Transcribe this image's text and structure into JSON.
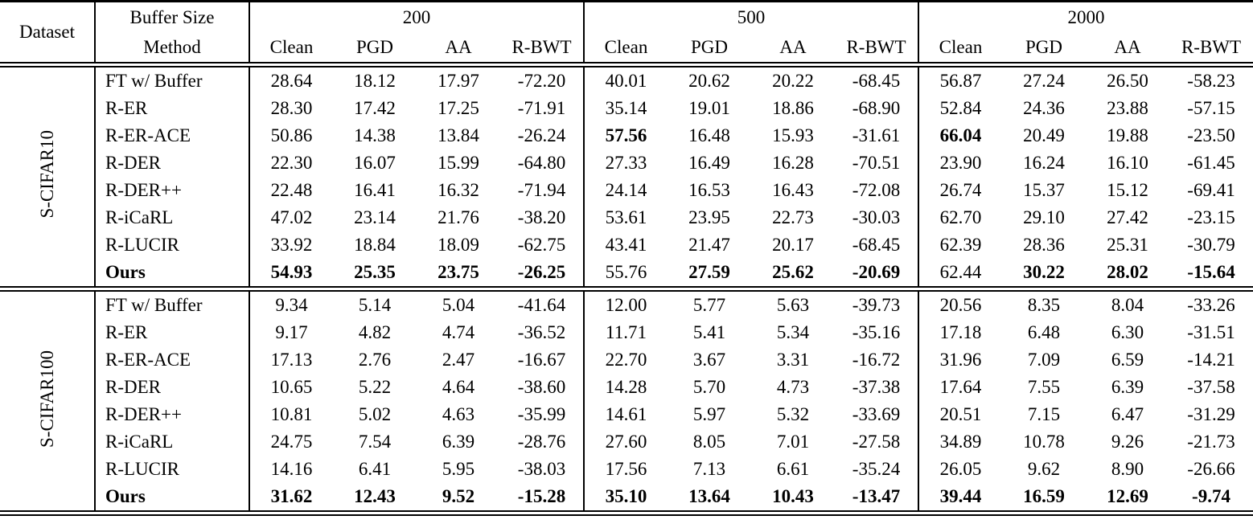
{
  "colors": {
    "background": "#ffffff",
    "text": "#000000",
    "rule": "#000000"
  },
  "table": {
    "corner_label": "Dataset",
    "buffer_size_label": "Buffer Size",
    "method_label": "Method",
    "buffer_sizes": [
      "200",
      "500",
      "2000"
    ],
    "metric_columns": [
      "Clean",
      "PGD",
      "AA",
      "R-BWT"
    ],
    "sections": [
      {
        "dataset": "S-CIFAR10",
        "rows": [
          {
            "method": "FT w/ Buffer",
            "bold_method": false,
            "values": [
              "28.64",
              "18.12",
              "17.97",
              "-72.20",
              "40.01",
              "20.62",
              "20.22",
              "-68.45",
              "56.87",
              "27.24",
              "26.50",
              "-58.23"
            ],
            "bold": [
              false,
              false,
              false,
              false,
              false,
              false,
              false,
              false,
              false,
              false,
              false,
              false
            ]
          },
          {
            "method": "R-ER",
            "bold_method": false,
            "values": [
              "28.30",
              "17.42",
              "17.25",
              "-71.91",
              "35.14",
              "19.01",
              "18.86",
              "-68.90",
              "52.84",
              "24.36",
              "23.88",
              "-57.15"
            ],
            "bold": [
              false,
              false,
              false,
              false,
              false,
              false,
              false,
              false,
              false,
              false,
              false,
              false
            ]
          },
          {
            "method": "R-ER-ACE",
            "bold_method": false,
            "values": [
              "50.86",
              "14.38",
              "13.84",
              "-26.24",
              "57.56",
              "16.48",
              "15.93",
              "-31.61",
              "66.04",
              "20.49",
              "19.88",
              "-23.50"
            ],
            "bold": [
              false,
              false,
              false,
              false,
              true,
              false,
              false,
              false,
              true,
              false,
              false,
              false
            ]
          },
          {
            "method": "R-DER",
            "bold_method": false,
            "values": [
              "22.30",
              "16.07",
              "15.99",
              "-64.80",
              "27.33",
              "16.49",
              "16.28",
              "-70.51",
              "23.90",
              "16.24",
              "16.10",
              "-61.45"
            ],
            "bold": [
              false,
              false,
              false,
              false,
              false,
              false,
              false,
              false,
              false,
              false,
              false,
              false
            ]
          },
          {
            "method": "R-DER++",
            "bold_method": false,
            "values": [
              "22.48",
              "16.41",
              "16.32",
              "-71.94",
              "24.14",
              "16.53",
              "16.43",
              "-72.08",
              "26.74",
              "15.37",
              "15.12",
              "-69.41"
            ],
            "bold": [
              false,
              false,
              false,
              false,
              false,
              false,
              false,
              false,
              false,
              false,
              false,
              false
            ]
          },
          {
            "method": "R-iCaRL",
            "bold_method": false,
            "values": [
              "47.02",
              "23.14",
              "21.76",
              "-38.20",
              "53.61",
              "23.95",
              "22.73",
              "-30.03",
              "62.70",
              "29.10",
              "27.42",
              "-23.15"
            ],
            "bold": [
              false,
              false,
              false,
              false,
              false,
              false,
              false,
              false,
              false,
              false,
              false,
              false
            ]
          },
          {
            "method": "R-LUCIR",
            "bold_method": false,
            "values": [
              "33.92",
              "18.84",
              "18.09",
              "-62.75",
              "43.41",
              "21.47",
              "20.17",
              "-68.45",
              "62.39",
              "28.36",
              "25.31",
              "-30.79"
            ],
            "bold": [
              false,
              false,
              false,
              false,
              false,
              false,
              false,
              false,
              false,
              false,
              false,
              false
            ]
          },
          {
            "method": "Ours",
            "bold_method": true,
            "values": [
              "54.93",
              "25.35",
              "23.75",
              "-26.25",
              "55.76",
              "27.59",
              "25.62",
              "-20.69",
              "62.44",
              "30.22",
              "28.02",
              "-15.64"
            ],
            "bold": [
              true,
              true,
              true,
              true,
              false,
              true,
              true,
              true,
              false,
              true,
              true,
              true
            ]
          }
        ]
      },
      {
        "dataset": "S-CIFAR100",
        "rows": [
          {
            "method": "FT w/ Buffer",
            "bold_method": false,
            "values": [
              "9.34",
              "5.14",
              "5.04",
              "-41.64",
              "12.00",
              "5.77",
              "5.63",
              "-39.73",
              "20.56",
              "8.35",
              "8.04",
              "-33.26"
            ],
            "bold": [
              false,
              false,
              false,
              false,
              false,
              false,
              false,
              false,
              false,
              false,
              false,
              false
            ]
          },
          {
            "method": "R-ER",
            "bold_method": false,
            "values": [
              "9.17",
              "4.82",
              "4.74",
              "-36.52",
              "11.71",
              "5.41",
              "5.34",
              "-35.16",
              "17.18",
              "6.48",
              "6.30",
              "-31.51"
            ],
            "bold": [
              false,
              false,
              false,
              false,
              false,
              false,
              false,
              false,
              false,
              false,
              false,
              false
            ]
          },
          {
            "method": "R-ER-ACE",
            "bold_method": false,
            "values": [
              "17.13",
              "2.76",
              "2.47",
              "-16.67",
              "22.70",
              "3.67",
              "3.31",
              "-16.72",
              "31.96",
              "7.09",
              "6.59",
              "-14.21"
            ],
            "bold": [
              false,
              false,
              false,
              false,
              false,
              false,
              false,
              false,
              false,
              false,
              false,
              false
            ]
          },
          {
            "method": "R-DER",
            "bold_method": false,
            "values": [
              "10.65",
              "5.22",
              "4.64",
              "-38.60",
              "14.28",
              "5.70",
              "4.73",
              "-37.38",
              "17.64",
              "7.55",
              "6.39",
              "-37.58"
            ],
            "bold": [
              false,
              false,
              false,
              false,
              false,
              false,
              false,
              false,
              false,
              false,
              false,
              false
            ]
          },
          {
            "method": "R-DER++",
            "bold_method": false,
            "values": [
              "10.81",
              "5.02",
              "4.63",
              "-35.99",
              "14.61",
              "5.97",
              "5.32",
              "-33.69",
              "20.51",
              "7.15",
              "6.47",
              "-31.29"
            ],
            "bold": [
              false,
              false,
              false,
              false,
              false,
              false,
              false,
              false,
              false,
              false,
              false,
              false
            ]
          },
          {
            "method": "R-iCaRL",
            "bold_method": false,
            "values": [
              "24.75",
              "7.54",
              "6.39",
              "-28.76",
              "27.60",
              "8.05",
              "7.01",
              "-27.58",
              "34.89",
              "10.78",
              "9.26",
              "-21.73"
            ],
            "bold": [
              false,
              false,
              false,
              false,
              false,
              false,
              false,
              false,
              false,
              false,
              false,
              false
            ]
          },
          {
            "method": "R-LUCIR",
            "bold_method": false,
            "values": [
              "14.16",
              "6.41",
              "5.95",
              "-38.03",
              "17.56",
              "7.13",
              "6.61",
              "-35.24",
              "26.05",
              "9.62",
              "8.90",
              "-26.66"
            ],
            "bold": [
              false,
              false,
              false,
              false,
              false,
              false,
              false,
              false,
              false,
              false,
              false,
              false
            ]
          },
          {
            "method": "Ours",
            "bold_method": true,
            "values": [
              "31.62",
              "12.43",
              "9.52",
              "-15.28",
              "35.10",
              "13.64",
              "10.43",
              "-13.47",
              "39.44",
              "16.59",
              "12.69",
              "-9.74"
            ],
            "bold": [
              true,
              true,
              true,
              true,
              true,
              true,
              true,
              true,
              true,
              true,
              true,
              true
            ]
          }
        ]
      }
    ]
  }
}
